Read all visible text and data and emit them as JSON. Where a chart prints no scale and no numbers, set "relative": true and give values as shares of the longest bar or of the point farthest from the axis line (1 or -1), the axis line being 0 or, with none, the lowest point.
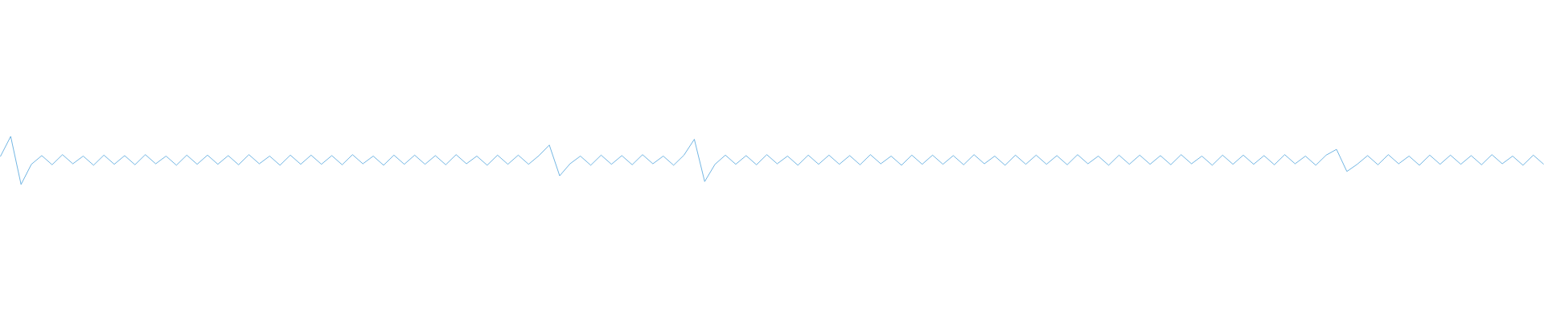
{
  "chart_data": {
    "type": "line",
    "relative": true,
    "color": "#4ea3dc",
    "categories": [
      null,
      null,
      null,
      null,
      null,
      null,
      null,
      null,
      null,
      null,
      null,
      null,
      null,
      null,
      null,
      null,
      null,
      null,
      null,
      null,
      null,
      null,
      null,
      null,
      null,
      null,
      null,
      null,
      null,
      null,
      null,
      null,
      null,
      null,
      null,
      null,
      null,
      null,
      null,
      null,
      null,
      null,
      null,
      null,
      null,
      null,
      null,
      null,
      null,
      null,
      null,
      null,
      null,
      null,
      null,
      null,
      null,
      null,
      null,
      null,
      null,
      null,
      null,
      null,
      null,
      null,
      null,
      null,
      null,
      null,
      null,
      null,
      null,
      null,
      null,
      null,
      null,
      null,
      null,
      null,
      null,
      null,
      null,
      null,
      null,
      null,
      null,
      null,
      null,
      null,
      null,
      null,
      null,
      null,
      null,
      null,
      null,
      null,
      null,
      null,
      null,
      null,
      null,
      null,
      null,
      null,
      null,
      null,
      null,
      null,
      null,
      null,
      null,
      null,
      null,
      null,
      null,
      null,
      null,
      null,
      null,
      null,
      null,
      null,
      null,
      null,
      null,
      null,
      null,
      null,
      null,
      null,
      null,
      null,
      null,
      null,
      null,
      null,
      null,
      null,
      null,
      null,
      null,
      null,
      null,
      null,
      null,
      null,
      null,
      null
    ],
    "values": [
      0.58,
      1.0,
      0.0,
      0.42,
      0.6,
      0.41,
      0.62,
      0.43,
      0.59,
      0.4,
      0.61,
      0.42,
      0.6,
      0.41,
      0.62,
      0.43,
      0.59,
      0.4,
      0.61,
      0.42,
      0.61,
      0.42,
      0.6,
      0.41,
      0.62,
      0.43,
      0.59,
      0.4,
      0.61,
      0.42,
      0.61,
      0.42,
      0.6,
      0.41,
      0.62,
      0.43,
      0.59,
      0.4,
      0.61,
      0.42,
      0.61,
      0.42,
      0.6,
      0.41,
      0.62,
      0.43,
      0.59,
      0.4,
      0.61,
      0.42,
      0.61,
      0.42,
      0.6,
      0.82,
      0.18,
      0.43,
      0.59,
      0.4,
      0.61,
      0.42,
      0.6,
      0.41,
      0.62,
      0.43,
      0.59,
      0.4,
      0.61,
      0.94,
      0.06,
      0.42,
      0.61,
      0.42,
      0.6,
      0.41,
      0.62,
      0.43,
      0.59,
      0.4,
      0.61,
      0.42,
      0.61,
      0.42,
      0.6,
      0.41,
      0.62,
      0.43,
      0.59,
      0.4,
      0.61,
      0.42,
      0.61,
      0.42,
      0.6,
      0.41,
      0.62,
      0.43,
      0.59,
      0.4,
      0.61,
      0.42,
      0.61,
      0.42,
      0.6,
      0.41,
      0.62,
      0.43,
      0.59,
      0.4,
      0.61,
      0.42,
      0.61,
      0.42,
      0.6,
      0.41,
      0.62,
      0.43,
      0.59,
      0.4,
      0.61,
      0.42,
      0.61,
      0.42,
      0.6,
      0.41,
      0.62,
      0.43,
      0.59,
      0.4,
      0.61,
      0.73,
      0.27,
      0.42,
      0.6,
      0.41,
      0.62,
      0.43,
      0.59,
      0.4,
      0.61,
      0.42,
      0.61,
      0.42,
      0.6,
      0.41,
      0.62,
      0.43,
      0.59,
      0.4,
      0.61,
      0.42
    ]
  }
}
